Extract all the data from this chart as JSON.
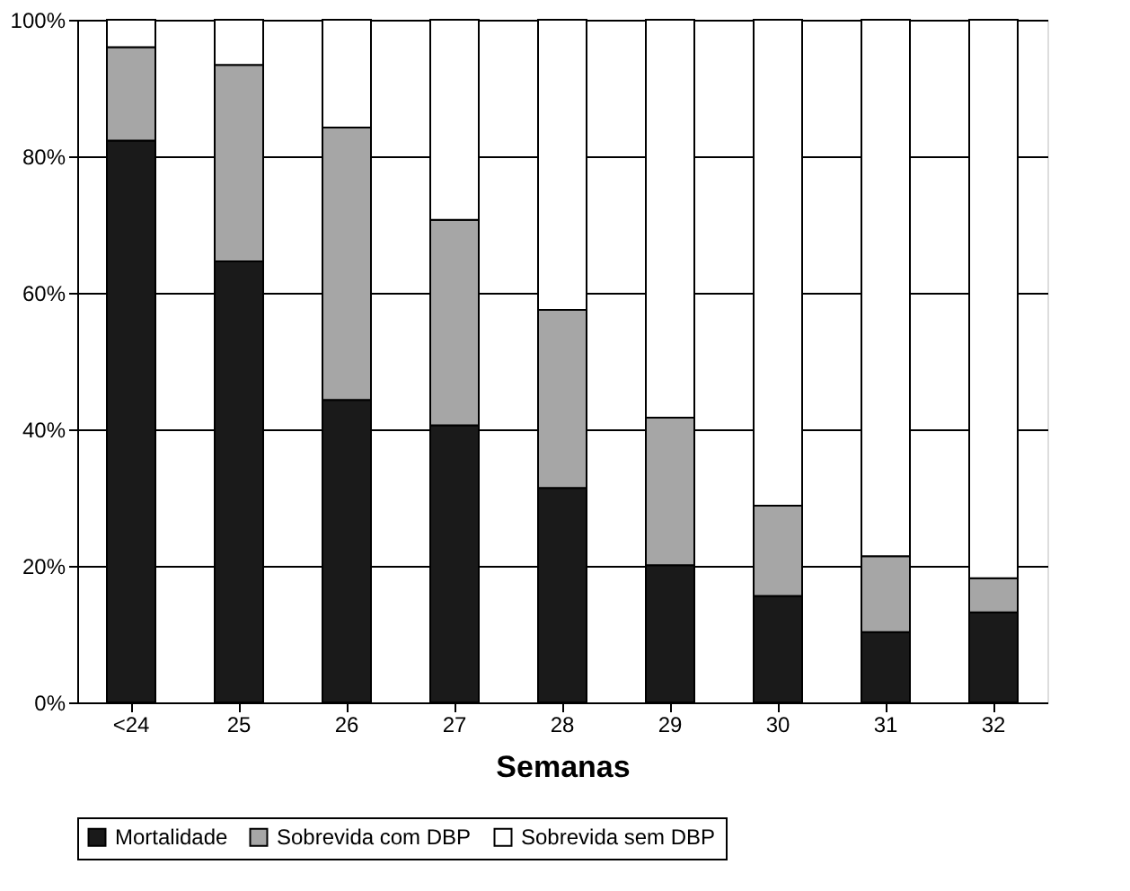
{
  "chart_data": {
    "type": "bar",
    "stacked": true,
    "xlabel": "Semanas",
    "categories": [
      "<24",
      "25",
      "26",
      "27",
      "28",
      "29",
      "30",
      "31",
      "32"
    ],
    "series": [
      {
        "name": "Mortalidade",
        "color": "#1a1a1a",
        "values": [
          82.3,
          64.6,
          44.3,
          40.6,
          31.4,
          20.1,
          15.6,
          10.3,
          13.2
        ]
      },
      {
        "name": "Sobrevida com DBP",
        "color": "#a6a6a6",
        "values": [
          13.7,
          28.8,
          39.9,
          30.1,
          26.1,
          21.6,
          13.2,
          11.1,
          5.0
        ]
      },
      {
        "name": "Sobrevida sem DBP",
        "color": "#ffffff",
        "values": [
          4.0,
          6.6,
          15.8,
          29.3,
          42.5,
          58.3,
          71.2,
          78.6,
          81.8
        ]
      }
    ],
    "ylim": [
      0,
      100
    ],
    "yticks": [
      {
        "value": 0,
        "label": "0%"
      },
      {
        "value": 20,
        "label": "20%"
      },
      {
        "value": 40,
        "label": "40%"
      },
      {
        "value": 60,
        "label": "60%"
      },
      {
        "value": 80,
        "label": "80%"
      },
      {
        "value": 100,
        "label": "100%"
      }
    ],
    "grid": "y",
    "legend": "bottom"
  }
}
